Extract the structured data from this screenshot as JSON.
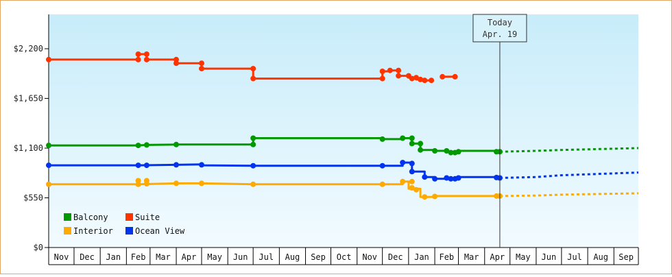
{
  "chart_data": {
    "type": "line",
    "currency_ticks": [
      "$0",
      "$550",
      "$1,100",
      "$1,650",
      "$2,200"
    ],
    "y_ticks": [
      0,
      550,
      1100,
      1650,
      2200
    ],
    "ylim": [
      0,
      2580
    ],
    "month_labels": [
      "Nov",
      "Dec",
      "Jan",
      "Feb",
      "Mar",
      "Apr",
      "May",
      "Jun",
      "Jul",
      "Aug",
      "Sep",
      "Oct",
      "Nov",
      "Dec",
      "Jan",
      "Feb",
      "Mar",
      "Apr",
      "May",
      "Jun",
      "Jul",
      "Aug",
      "Sep"
    ],
    "xlim": [
      "2017-11-01",
      "2019-09-30"
    ],
    "today": {
      "line1": "Today",
      "line2": "Apr. 19",
      "date": "2019-04-19"
    },
    "legend": [
      {
        "key": "balcony",
        "label": "Balcony"
      },
      {
        "key": "suite",
        "label": "Suite"
      },
      {
        "key": "interior",
        "label": "Interior"
      },
      {
        "key": "ocean",
        "label": "Ocean View"
      }
    ],
    "series": [
      {
        "key": "suite",
        "name": "Suite",
        "color": "#ff3300",
        "points": [
          [
            "2017-11-01",
            2080
          ],
          [
            "2018-02-15",
            2080
          ],
          [
            "2018-02-15",
            2140
          ],
          [
            "2018-02-25",
            2140
          ],
          [
            "2018-02-25",
            2080
          ],
          [
            "2018-04-01",
            2080
          ],
          [
            "2018-04-01",
            2040
          ],
          [
            "2018-05-01",
            2040
          ],
          [
            "2018-05-01",
            1980
          ],
          [
            "2018-07-01",
            1980
          ],
          [
            "2018-07-01",
            1870
          ],
          [
            "2018-12-01",
            1870
          ],
          [
            "2018-12-01",
            1950
          ],
          [
            "2018-12-10",
            1950
          ],
          [
            "2018-12-10",
            1960
          ],
          [
            "2018-12-20",
            1960
          ],
          [
            "2018-12-20",
            1900
          ],
          [
            "2019-01-01",
            1900
          ],
          [
            "2019-01-01",
            1880
          ],
          [
            "2019-01-10",
            1880
          ],
          [
            "2019-01-10",
            1860
          ],
          [
            "2019-01-20",
            1860
          ],
          [
            "2019-01-20",
            1850
          ],
          [
            "2019-01-28",
            1850
          ]
        ],
        "extra_segments": [
          [
            [
              "2019-02-10",
              1890
            ],
            [
              "2019-02-25",
              1890
            ]
          ]
        ],
        "markers": [
          [
            "2017-11-01",
            2080
          ],
          [
            "2018-02-15",
            2080
          ],
          [
            "2018-02-15",
            2140
          ],
          [
            "2018-02-25",
            2140
          ],
          [
            "2018-02-25",
            2080
          ],
          [
            "2018-04-01",
            2080
          ],
          [
            "2018-04-01",
            2040
          ],
          [
            "2018-05-01",
            2040
          ],
          [
            "2018-05-01",
            1980
          ],
          [
            "2018-07-01",
            1980
          ],
          [
            "2018-07-01",
            1870
          ],
          [
            "2018-12-01",
            1870
          ],
          [
            "2018-12-01",
            1950
          ],
          [
            "2018-12-10",
            1960
          ],
          [
            "2018-12-20",
            1960
          ],
          [
            "2018-12-20",
            1900
          ],
          [
            "2019-01-01",
            1900
          ],
          [
            "2019-01-05",
            1870
          ],
          [
            "2019-01-10",
            1880
          ],
          [
            "2019-01-15",
            1860
          ],
          [
            "2019-01-20",
            1850
          ],
          [
            "2019-01-28",
            1850
          ],
          [
            "2019-02-10",
            1890
          ],
          [
            "2019-02-25",
            1890
          ]
        ],
        "projection": []
      },
      {
        "key": "balcony",
        "name": "Balcony",
        "color": "#009900",
        "points": [
          [
            "2017-11-01",
            1130
          ],
          [
            "2018-02-15",
            1130
          ],
          [
            "2018-02-25",
            1135
          ],
          [
            "2018-04-01",
            1140
          ],
          [
            "2018-07-01",
            1140
          ],
          [
            "2018-07-01",
            1210
          ],
          [
            "2018-12-01",
            1210
          ],
          [
            "2018-12-01",
            1200
          ],
          [
            "2018-12-25",
            1200
          ],
          [
            "2018-12-25",
            1210
          ],
          [
            "2019-01-05",
            1210
          ],
          [
            "2019-01-05",
            1150
          ],
          [
            "2019-01-15",
            1150
          ],
          [
            "2019-01-15",
            1080
          ],
          [
            "2019-02-01",
            1080
          ],
          [
            "2019-02-01",
            1070
          ],
          [
            "2019-02-15",
            1070
          ],
          [
            "2019-02-15",
            1060
          ],
          [
            "2019-03-01",
            1060
          ],
          [
            "2019-03-01",
            1070
          ],
          [
            "2019-04-19",
            1070
          ],
          [
            "2019-04-19",
            1060
          ]
        ],
        "extra_segments": [],
        "markers": [
          [
            "2017-11-01",
            1130
          ],
          [
            "2018-02-15",
            1130
          ],
          [
            "2018-02-25",
            1135
          ],
          [
            "2018-04-01",
            1140
          ],
          [
            "2018-07-01",
            1140
          ],
          [
            "2018-07-01",
            1210
          ],
          [
            "2018-12-01",
            1200
          ],
          [
            "2018-12-25",
            1210
          ],
          [
            "2019-01-05",
            1210
          ],
          [
            "2019-01-05",
            1150
          ],
          [
            "2019-01-15",
            1150
          ],
          [
            "2019-01-15",
            1080
          ],
          [
            "2019-02-01",
            1070
          ],
          [
            "2019-02-15",
            1070
          ],
          [
            "2019-02-20",
            1050
          ],
          [
            "2019-02-25",
            1050
          ],
          [
            "2019-03-01",
            1060
          ],
          [
            "2019-04-15",
            1060
          ],
          [
            "2019-04-19",
            1060
          ]
        ],
        "projection": [
          [
            "2019-04-19",
            1060
          ],
          [
            "2019-06-01",
            1070
          ],
          [
            "2019-07-01",
            1080
          ],
          [
            "2019-09-30",
            1100
          ]
        ]
      },
      {
        "key": "ocean",
        "name": "Ocean View",
        "color": "#0033ee",
        "points": [
          [
            "2017-11-01",
            910
          ],
          [
            "2018-02-15",
            910
          ],
          [
            "2018-04-01",
            915
          ],
          [
            "2018-05-01",
            920
          ],
          [
            "2018-05-01",
            910
          ],
          [
            "2018-07-01",
            905
          ],
          [
            "2018-12-01",
            905
          ],
          [
            "2018-12-25",
            905
          ],
          [
            "2018-12-25",
            940
          ],
          [
            "2019-01-05",
            940
          ],
          [
            "2019-01-05",
            840
          ],
          [
            "2019-01-20",
            840
          ],
          [
            "2019-01-20",
            780
          ],
          [
            "2019-02-01",
            780
          ],
          [
            "2019-02-01",
            760
          ],
          [
            "2019-03-01",
            760
          ],
          [
            "2019-03-01",
            780
          ],
          [
            "2019-04-19",
            780
          ],
          [
            "2019-04-19",
            770
          ]
        ],
        "extra_segments": [],
        "markers": [
          [
            "2017-11-01",
            910
          ],
          [
            "2018-02-15",
            910
          ],
          [
            "2018-02-25",
            910
          ],
          [
            "2018-04-01",
            915
          ],
          [
            "2018-05-01",
            915
          ],
          [
            "2018-07-01",
            905
          ],
          [
            "2018-12-01",
            905
          ],
          [
            "2018-12-25",
            940
          ],
          [
            "2019-01-05",
            930
          ],
          [
            "2019-01-05",
            840
          ],
          [
            "2019-01-20",
            780
          ],
          [
            "2019-02-01",
            760
          ],
          [
            "2019-02-15",
            770
          ],
          [
            "2019-02-20",
            760
          ],
          [
            "2019-02-25",
            760
          ],
          [
            "2019-03-01",
            770
          ],
          [
            "2019-04-15",
            775
          ],
          [
            "2019-04-19",
            770
          ]
        ],
        "projection": [
          [
            "2019-04-19",
            770
          ],
          [
            "2019-06-01",
            780
          ],
          [
            "2019-07-01",
            800
          ],
          [
            "2019-09-30",
            830
          ]
        ]
      },
      {
        "key": "interior",
        "name": "Interior",
        "color": "#ffaa00",
        "points": [
          [
            "2017-11-01",
            700
          ],
          [
            "2018-02-15",
            700
          ],
          [
            "2018-04-01",
            710
          ],
          [
            "2018-05-01",
            710
          ],
          [
            "2018-07-01",
            700
          ],
          [
            "2018-12-01",
            700
          ],
          [
            "2018-12-25",
            700
          ],
          [
            "2018-12-25",
            730
          ],
          [
            "2019-01-01",
            730
          ],
          [
            "2019-01-01",
            650
          ],
          [
            "2019-01-15",
            650
          ],
          [
            "2019-01-15",
            560
          ],
          [
            "2019-02-01",
            560
          ],
          [
            "2019-02-01",
            570
          ],
          [
            "2019-04-19",
            570
          ]
        ],
        "extra_segments": [],
        "markers": [
          [
            "2017-11-01",
            700
          ],
          [
            "2018-02-15",
            700
          ],
          [
            "2018-02-15",
            740
          ],
          [
            "2018-02-25",
            740
          ],
          [
            "2018-02-25",
            705
          ],
          [
            "2018-04-01",
            710
          ],
          [
            "2018-05-01",
            710
          ],
          [
            "2018-07-01",
            700
          ],
          [
            "2018-12-01",
            700
          ],
          [
            "2018-12-25",
            730
          ],
          [
            "2019-01-05",
            730
          ],
          [
            "2019-01-05",
            660
          ],
          [
            "2019-01-10",
            640
          ],
          [
            "2019-01-20",
            560
          ],
          [
            "2019-02-01",
            565
          ],
          [
            "2019-04-15",
            570
          ],
          [
            "2019-04-19",
            570
          ]
        ],
        "projection": [
          [
            "2019-04-19",
            570
          ],
          [
            "2019-06-01",
            575
          ],
          [
            "2019-07-01",
            585
          ],
          [
            "2019-09-30",
            600
          ]
        ]
      }
    ]
  }
}
